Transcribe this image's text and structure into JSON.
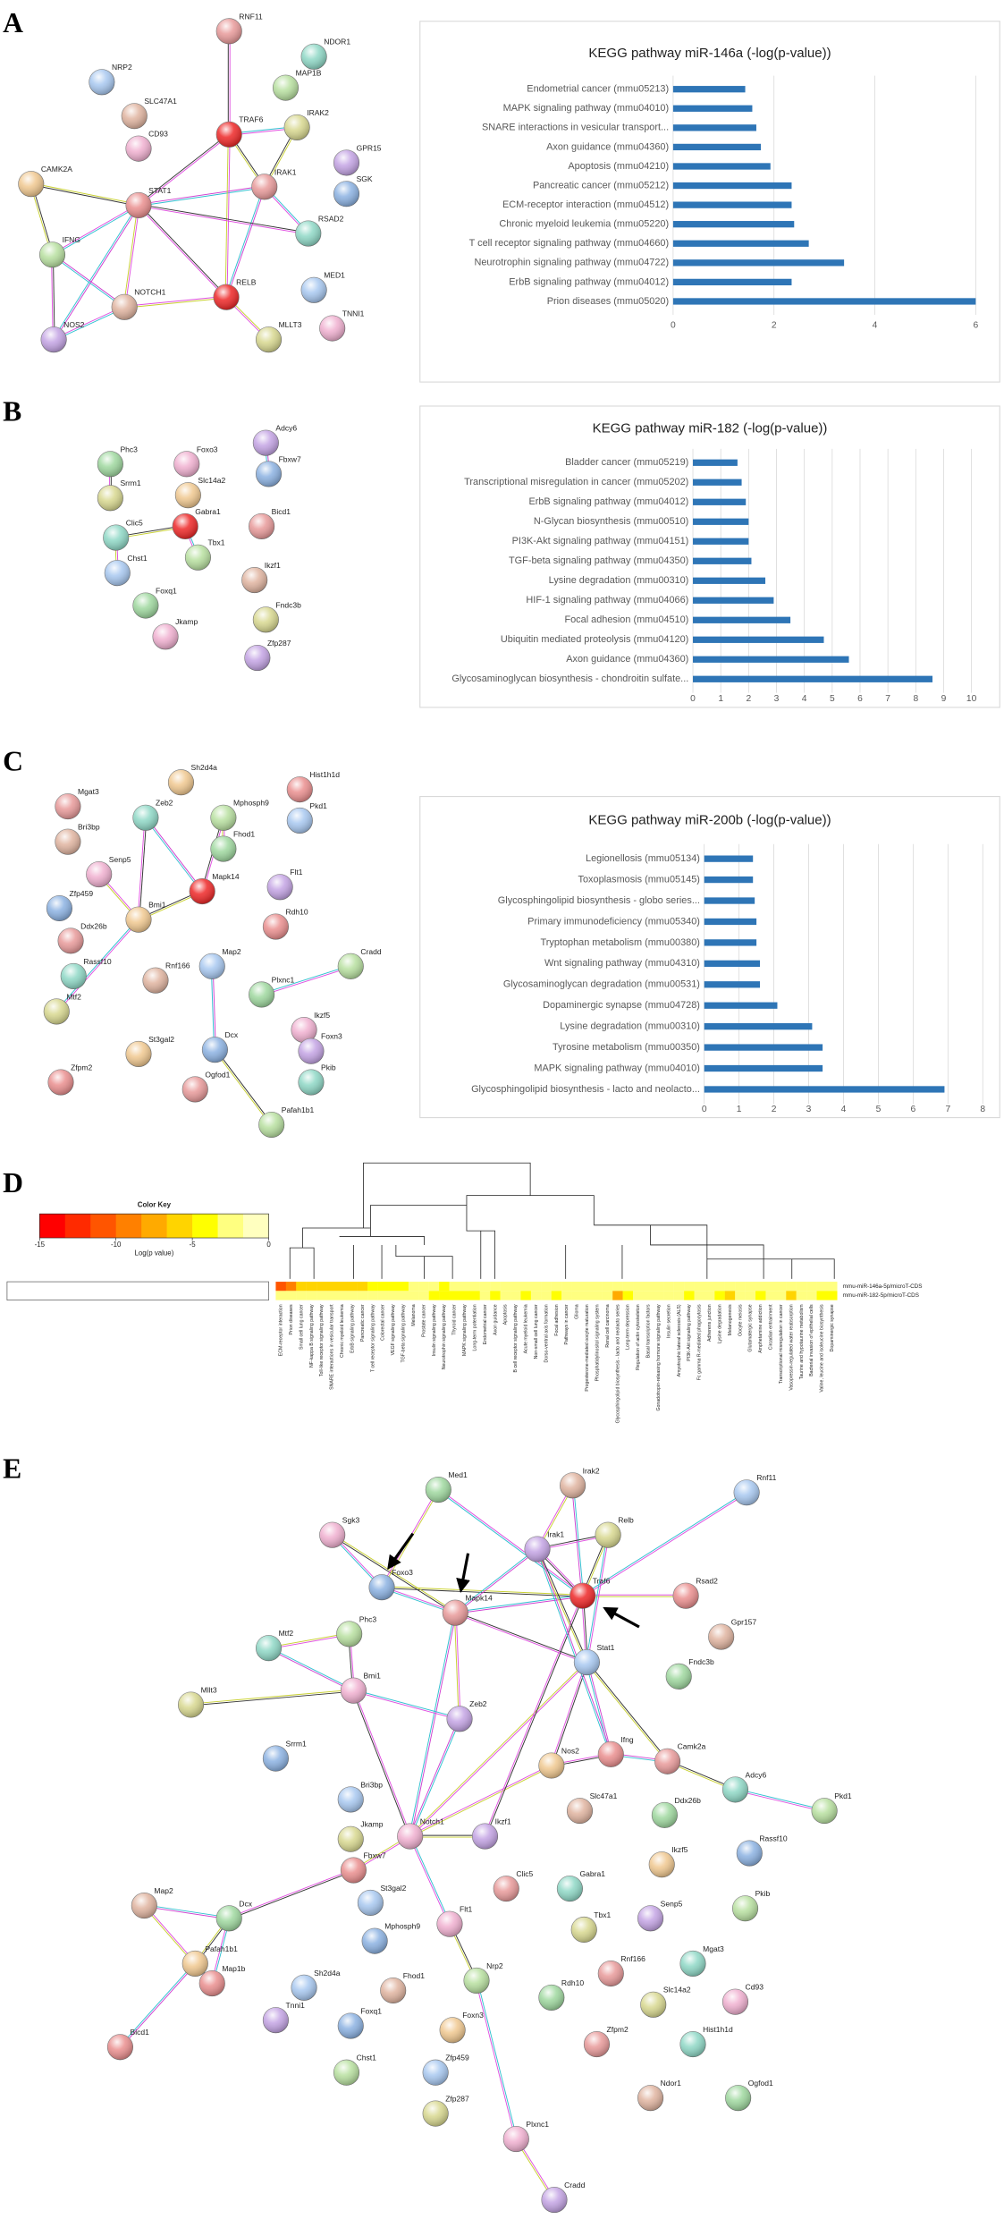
{
  "panels": [
    "A",
    "B",
    "C",
    "D",
    "E"
  ],
  "chart_data": [
    {
      "type": "barh",
      "title": "KEGG pathway miR-146a (-log(p-value))",
      "categories": [
        "Endometrial cancer (mmu05213)",
        "MAPK signaling pathway (mmu04010)",
        "SNARE interactions in vesicular transport...",
        "Axon guidance (mmu04360)",
        "Apoptosis (mmu04210)",
        "Pancreatic cancer (mmu05212)",
        "ECM-receptor interaction (mmu04512)",
        "Chronic myeloid leukemia (mmu05220)",
        "T cell receptor signaling pathway (mmu04660)",
        "Neurotrophin signaling pathway (mmu04722)",
        "ErbB signaling pathway (mmu04012)",
        "Prion diseases (mmu05020)"
      ],
      "values": [
        1.43,
        1.57,
        1.65,
        1.74,
        1.93,
        2.35,
        2.35,
        2.4,
        2.69,
        3.39,
        2.35,
        6.0
      ],
      "color": "#2e75b6",
      "xlim": [
        0,
        6
      ],
      "xticks": [
        0,
        2,
        4,
        6
      ],
      "grid": true
    },
    {
      "type": "barh",
      "title": "KEGG pathway miR-182 (-log(p-value))",
      "categories": [
        "Bladder cancer (mmu05219)",
        "Transcriptional misregulation in cancer (mmu05202)",
        "ErbB signaling pathway (mmu04012)",
        "N-Glycan biosynthesis (mmu00510)",
        "PI3K-Akt signaling pathway (mmu04151)",
        "TGF-beta signaling pathway (mmu04350)",
        "Lysine degradation (mmu00310)",
        "HIF-1 signaling pathway (mmu04066)",
        "Focal adhesion (mmu04510)",
        "Ubiquitin mediated proteolysis (mmu04120)",
        "Axon guidance (mmu04360)",
        "Glycosaminoglycan biosynthesis - chondroitin sulfate..."
      ],
      "values": [
        1.6,
        1.75,
        1.9,
        2.0,
        2.0,
        2.1,
        2.6,
        2.9,
        3.5,
        4.7,
        5.6,
        8.6
      ],
      "color": "#2e75b6",
      "xlim": [
        0,
        10
      ],
      "xticks": [
        0,
        1,
        2,
        3,
        4,
        5,
        6,
        7,
        8,
        9,
        10
      ],
      "grid": true
    },
    {
      "type": "barh",
      "title": "KEGG pathway miR-200b (-log(p-value))",
      "categories": [
        "Legionellosis (mmu05134)",
        "Toxoplasmosis (mmu05145)",
        "Glycosphingolipid biosynthesis - globo series...",
        "Primary immunodeficiency (mmu05340)",
        "Tryptophan metabolism (mmu00380)",
        "Wnt signaling pathway (mmu04310)",
        "Glycosaminoglycan degradation (mmu00531)",
        "Dopaminergic synapse (mmu04728)",
        "Lysine degradation (mmu00310)",
        "Tyrosine metabolism (mmu00350)",
        "MAPK signaling pathway (mmu04010)",
        "Glycosphingolipid biosynthesis - lacto and neolacto..."
      ],
      "values": [
        1.4,
        1.4,
        1.45,
        1.5,
        1.5,
        1.6,
        1.6,
        2.1,
        3.1,
        3.4,
        3.4,
        6.9
      ],
      "color": "#2e75b6",
      "xlim": [
        0,
        8
      ],
      "xticks": [
        0,
        1,
        2,
        3,
        4,
        5,
        6,
        7,
        8
      ],
      "grid": true
    },
    {
      "type": "heatmap",
      "key_title": "Color Key",
      "key_label": "Log(p value)",
      "zlim": [
        -15,
        0
      ],
      "zticks": [
        -15,
        -10,
        -5,
        0
      ],
      "colors": [
        "#ff0000",
        "#ff2a00",
        "#ff5500",
        "#ff8000",
        "#ffaa00",
        "#ffd400",
        "#ffff00",
        "#ffff80",
        "#ffffbf"
      ],
      "rows": [
        "mmu-miR-146a-5p/microT-CDS",
        "mmu-miR-182-5p/microT-CDS"
      ],
      "columns": [
        "ECM-receptor interaction",
        "Prion diseases",
        "Small cell lung cancer",
        "NF-kappa B signaling pathway",
        "Toll-like receptor signaling pathway",
        "SNARE interactions in vesicular transport",
        "Chronic myeloid leukemia",
        "ErbB signaling pathway",
        "Pancreatic cancer",
        "T cell receptor signaling pathway",
        "Colorectal cancer",
        "VEGF signaling pathway",
        "TGF-beta signaling pathway",
        "Melanoma",
        "Prostate cancer",
        "Insulin signaling pathway",
        "Neurotrophin signaling pathway",
        "Thyroid cancer",
        "MAPK signaling pathway",
        "Long-term potentiation",
        "Endometrial cancer",
        "Axon guidance",
        "Apoptosis",
        "B cell receptor signaling pathway",
        "Acute myeloid leukemia",
        "Non-small cell lung cancer",
        "Dorso-ventral axis formation",
        "Focal adhesion",
        "Pathways in cancer",
        "Glioma",
        "Progesterone-mediated oocyte maturation",
        "Phosphatidylinositol signaling system",
        "Renal cell carcinoma",
        "Glycosphingolipid biosynthesis - lacto and neolacto series",
        "Long-term depression",
        "Regulation of actin cytoskeleton",
        "Basal transcription factors",
        "Gonadotropin-releasing hormone signaling pathway",
        "Insulin secretion",
        "Amyotrophic lateral sclerosis (ALS)",
        "PI3K-Akt signaling pathway",
        "Fc gamma R-mediated phagocytosis",
        "Adherens junction",
        "Lysine degradation",
        "Melanogenesis",
        "Oocyte meiosis",
        "Glutamatergic synapse",
        "Amphetamine addiction",
        "Circadian entrainment",
        "Transcriptional misregulation in cancer",
        "Vasopressin-regulated water reabsorption",
        "Taurine and hypotaurine metabolism",
        "Bacterial invasion of epithelial cells",
        "Valine, leucine and isoleucine biosynthesis",
        "Dopaminergic synapse"
      ],
      "values": [
        [
          -12,
          -9,
          -6,
          -5,
          -5,
          -5,
          -5,
          -5,
          -5,
          -4,
          -3,
          -3,
          -3,
          -2,
          -2,
          -2,
          -4,
          -2,
          -2,
          -2,
          -2,
          -2,
          -2,
          -1,
          -1,
          -1,
          -1,
          -1,
          -1,
          -1,
          -1,
          -1,
          -1,
          -1,
          -1,
          -1,
          -1,
          -1,
          -1,
          -1,
          -1,
          -1,
          -1,
          -1,
          -1,
          -1,
          -1,
          -1,
          -1,
          -1,
          -1,
          -1,
          -1,
          -1,
          -1
        ],
        [
          -1,
          -1,
          -1,
          -1,
          -1,
          -1,
          -1,
          -1,
          -1,
          -1,
          -1,
          -1,
          -1,
          -1,
          -1,
          -3,
          -4,
          -3,
          -3,
          -3,
          -2,
          -3,
          -2,
          -2,
          -3,
          -2,
          -2,
          -3,
          -2,
          -2,
          -2,
          -2,
          -2,
          -7,
          -3,
          -2,
          -2,
          -2,
          -2,
          -2,
          -3,
          -2,
          -2,
          -3,
          -5,
          -2,
          -2,
          -3,
          -2,
          -2,
          -5,
          -2,
          -2,
          -3,
          -4
        ]
      ]
    }
  ],
  "networks": [
    {
      "nodes": [
        "RNF11",
        "NDOR1",
        "MAP1B",
        "NRP2",
        "SLC47A1",
        "TRAF6",
        "IRAK2",
        "CD93",
        "GPR15",
        "SGK",
        "CAMK2A",
        "STAT1",
        "IRAK1",
        "RSAD2",
        "IFNG",
        "MED1",
        "NOTCH1",
        "RELB",
        "MLLT3",
        "TNNI1",
        "NOS2"
      ]
    },
    {
      "nodes": [
        "Phc3",
        "Srrm1",
        "Foxo3",
        "Adcy6",
        "Fbxw7",
        "Slc14a2",
        "Gabra1",
        "Bicd1",
        "Clic5",
        "Tbx1",
        "Chst1",
        "Ikzf1",
        "Foxq1",
        "Fndc3b",
        "Jkamp",
        "Zfp287"
      ]
    },
    {
      "nodes": [
        "Sh2d4a",
        "Hist1h1d",
        "Mgat3",
        "Zeb2",
        "Mphosph9",
        "Pkd1",
        "Bri3bp",
        "Fhod1",
        "Mapk14",
        "Senp5",
        "Flt1",
        "Zfp459",
        "Bmi1",
        "Rdh10",
        "Ddx26b",
        "Rassf10",
        "Cradd",
        "Map2",
        "Rnf166",
        "Plxnc1",
        "Mtf2",
        "Ikzf5",
        "Foxn3",
        "Dcx",
        "St3gal2",
        "Zfpm2",
        "Ogfod1",
        "Pkib",
        "Pafah1b1"
      ]
    },
    {
      "nodes": [
        "Rnf11",
        "Irak2",
        "Med1",
        "Relb",
        "Sgk3",
        "Irak1",
        "Foxo3",
        "Traf6",
        "Rsad2",
        "Mapk14",
        "Mtf2",
        "Phc3",
        "Stat1",
        "Gpr157",
        "Fndc3b",
        "Mllt3",
        "Bmi1",
        "Zeb2",
        "Srrm1",
        "Nos2",
        "Ifng",
        "Camk2a",
        "Adcy6",
        "Pkd1",
        "Bri3bp",
        "Slc47a1",
        "Ddx26b",
        "Jkamp",
        "Notch1",
        "Ikzf1",
        "Rassf10",
        "Ikzf5",
        "Fbxw7",
        "Clic5",
        "Gabra1",
        "Pkib",
        "St3gal2",
        "Map2",
        "Dcx",
        "Tbx1",
        "Flt1",
        "Senp5",
        "Mphosph9",
        "Pafah1b1",
        "Map1b",
        "Rnf166",
        "Mgat3",
        "Nrp2",
        "Sh2d4a",
        "Fhod1",
        "Rdh10",
        "Slc14a2",
        "Cd93",
        "Tnni1",
        "Foxq1",
        "Foxn3",
        "Bicd1",
        "Zfpm2",
        "Hist1h1d",
        "Chst1",
        "Zfp459",
        "Ndor1",
        "Ogfod1",
        "Zfp287",
        "Plxnc1",
        "Cradd"
      ]
    }
  ]
}
